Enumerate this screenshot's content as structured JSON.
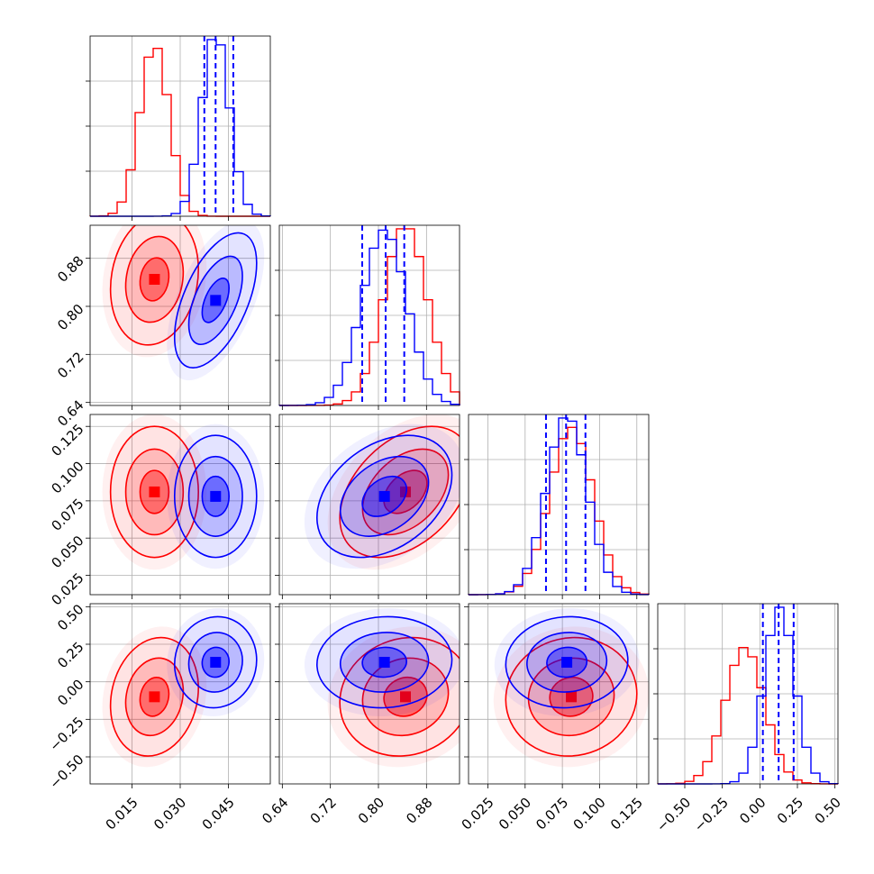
{
  "chart_data": {
    "type": "corner",
    "parameters": [
      {
        "ticks": [
          0.015,
          0.03,
          0.045
        ],
        "tick_labels": [
          "0.015",
          "0.030",
          "0.045"
        ],
        "range": [
          0.002,
          0.058
        ]
      },
      {
        "ticks": [
          0.64,
          0.72,
          0.8,
          0.88
        ],
        "tick_labels": [
          "0.64",
          "0.72",
          "0.80",
          "0.88"
        ],
        "range": [
          0.635,
          0.935
        ]
      },
      {
        "ticks": [
          0.025,
          0.05,
          0.075,
          0.1,
          0.125
        ],
        "tick_labels": [
          "0.025",
          "0.050",
          "0.075",
          "0.100",
          "0.125"
        ],
        "range": [
          0.012,
          0.133
        ]
      },
      {
        "ticks": [
          -0.5,
          -0.25,
          0.0,
          0.25,
          0.5
        ],
        "tick_labels": [
          "−0.50",
          "−0.25",
          "0.00",
          "0.25",
          "0.50"
        ],
        "range": [
          -0.68,
          0.52
        ]
      }
    ],
    "series": [
      {
        "color": "#ff0000",
        "mean": [
          0.022,
          0.845,
          0.081,
          -0.1
        ],
        "sd": [
          0.0045,
          0.036,
          0.0145,
          0.13
        ],
        "corr": [
          [
            0,
            0,
            0,
            0
          ],
          [
            0.15,
            0,
            0,
            0
          ],
          [
            0,
            0.4,
            0,
            0
          ],
          [
            0.15,
            0.1,
            0.05,
            0
          ]
        ],
        "quantiles": null
      },
      {
        "color": "#0000ff",
        "mean": [
          0.041,
          0.81,
          0.078,
          0.13
        ],
        "sd": [
          0.0042,
          0.037,
          0.0135,
          0.1
        ],
        "corr": [
          [
            0,
            0,
            0,
            0
          ],
          [
            0.55,
            0,
            0,
            0
          ],
          [
            0,
            0.35,
            0,
            0
          ],
          [
            0.05,
            0.05,
            0.05,
            0
          ]
        ],
        "quantiles": [
          [
            0.0375,
            0.041,
            0.0465
          ],
          [
            0.773,
            0.812,
            0.843
          ],
          [
            0.064,
            0.0775,
            0.0905
          ],
          [
            0.02,
            0.125,
            0.225
          ]
        ]
      }
    ],
    "grid": true,
    "histogram_bins": 20,
    "contour_levels": [
      0.39,
      0.86,
      0.99
    ]
  }
}
